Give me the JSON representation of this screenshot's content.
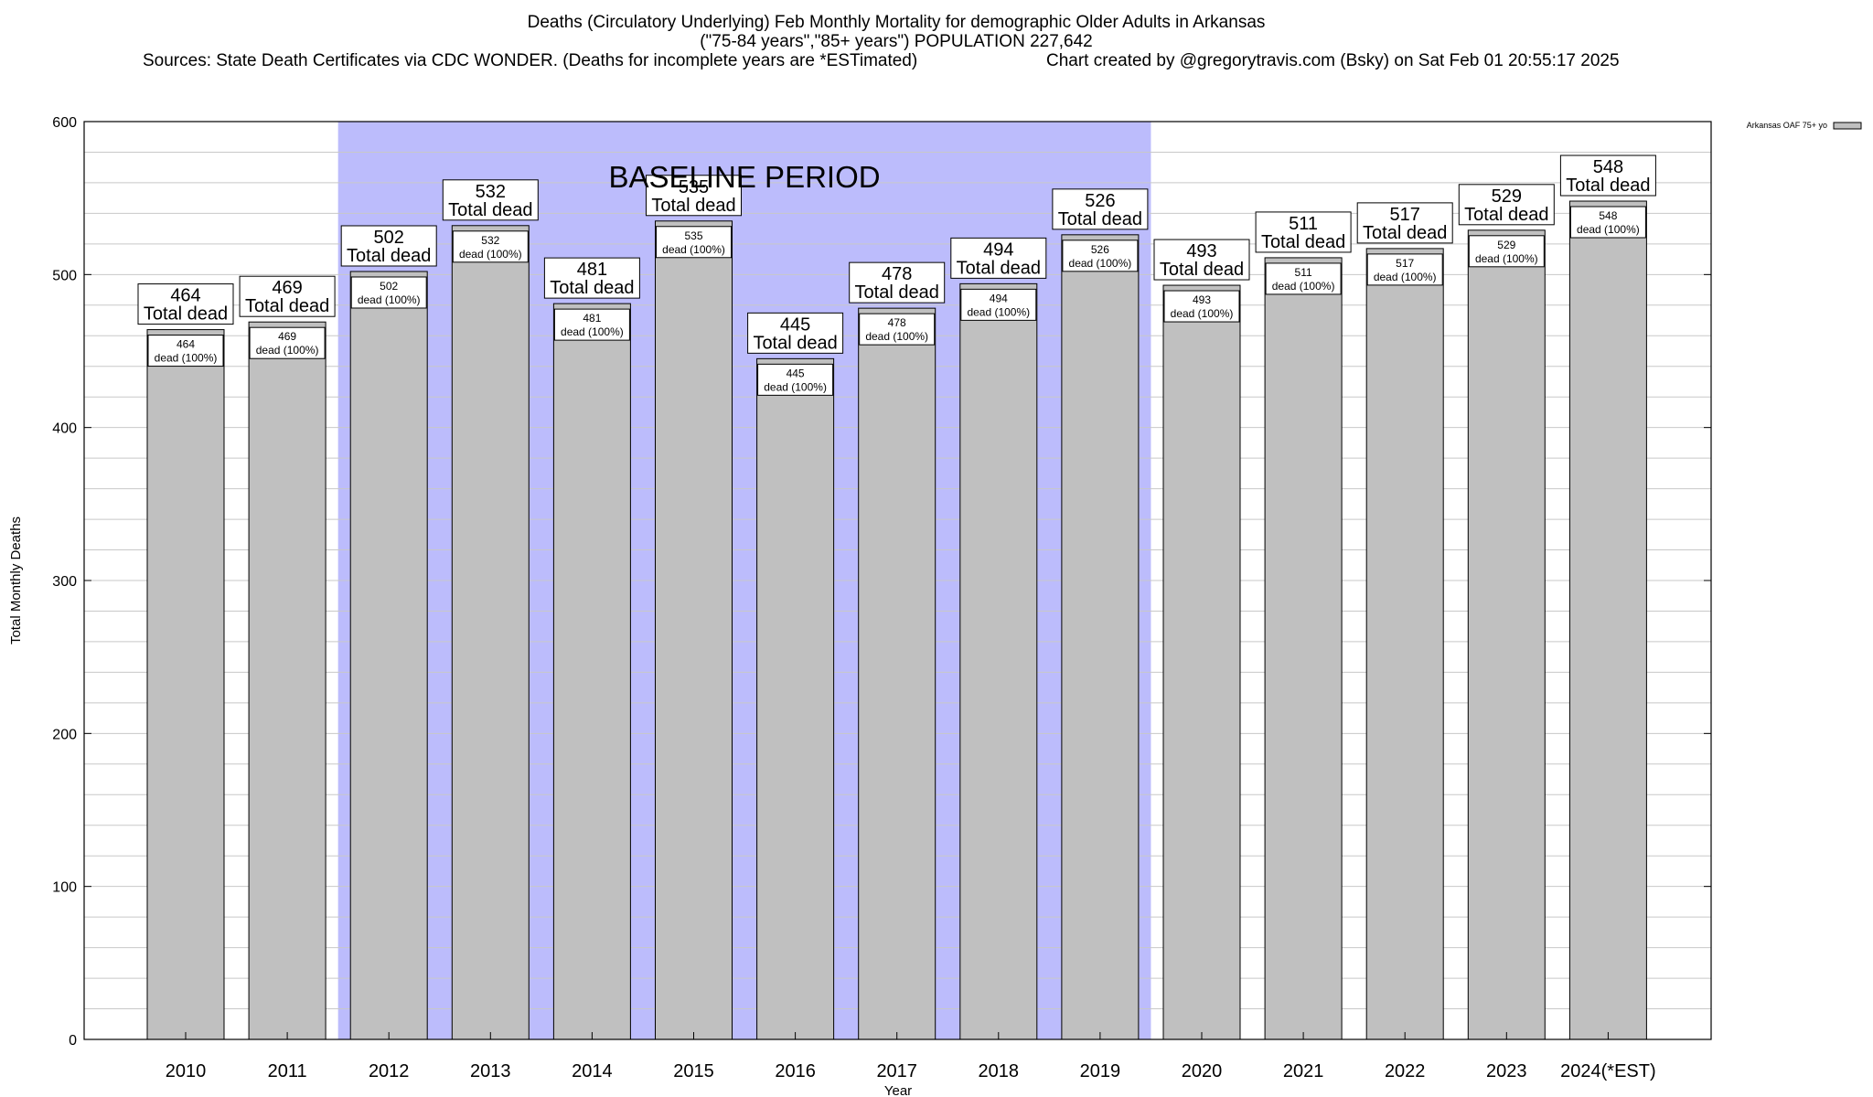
{
  "chart_data": {
    "type": "bar",
    "title_lines": [
      "Deaths (Circulatory Underlying) Feb Monthly Mortality for demographic Older Adults in Arkansas",
      "(\"75-84 years\",\"85+ years\") POPULATION 227,642"
    ],
    "sources_text": "Sources: State Death Certificates via CDC WONDER. (Deaths for incomplete years are *ESTimated)",
    "credit_text": "Chart created by @gregorytravis.com (Bsky) on Sat Feb 01 20:55:17 2025",
    "xlabel": "Year",
    "ylabel": "Total Monthly Deaths",
    "ylim": [
      0,
      600
    ],
    "y_ticks": [
      0,
      100,
      200,
      300,
      400,
      500,
      600
    ],
    "y_minor_step": 20,
    "grid": true,
    "categories": [
      "2010",
      "2011",
      "2012",
      "2013",
      "2014",
      "2015",
      "2016",
      "2017",
      "2018",
      "2019",
      "2020",
      "2021",
      "2022",
      "2023",
      "2024(*EST)"
    ],
    "series": [
      {
        "name": "Arkansas OAF 75+ yo",
        "values": [
          464,
          469,
          502,
          532,
          481,
          535,
          445,
          478,
          494,
          526,
          493,
          511,
          517,
          529,
          548
        ],
        "color": "#c0c0c0"
      }
    ],
    "bar_outer_label_suffix": "Total dead",
    "bar_inner_label_suffix": "dead (100%)",
    "baseline_period": {
      "label": "BASELINE PERIOD",
      "start": "2012",
      "end": "2019",
      "color": "#bcbcfc"
    },
    "legend": {
      "position": "top-right",
      "label": "Arkansas OAF 75+ yo"
    }
  }
}
